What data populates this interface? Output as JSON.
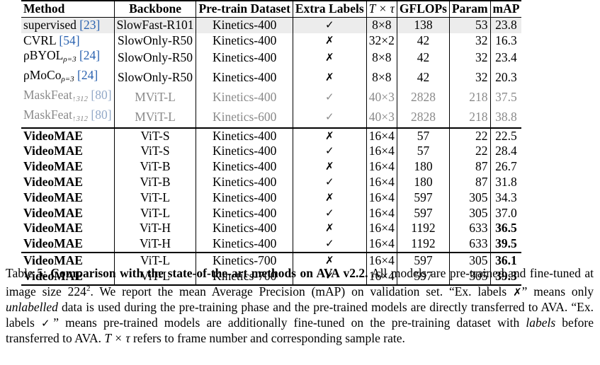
{
  "headers": {
    "method": "Method",
    "backbone": "Backbone",
    "dataset": "Pre-train Dataset",
    "extra": "Extra Labels",
    "ttau": "T × τ",
    "gflops": "GFLOPs",
    "param": "Param",
    "map": "mAP"
  },
  "rows": [
    {
      "method": "supervised ",
      "ref": "[23]",
      "backbone": "SlowFast-R101",
      "dataset": "Kinetics-400",
      "extra": "✓",
      "ttau": "8×8",
      "gflops": "138",
      "param": "53",
      "map": "23.8"
    },
    {
      "method": "CVRL ",
      "ref": "[54]",
      "backbone": "SlowOnly-R50",
      "dataset": "Kinetics-400",
      "extra": "✗",
      "ttau": "32×2",
      "gflops": "42",
      "param": "32",
      "map": "16.3"
    },
    {
      "method": "ρBYOL",
      "method_sub": "ρ=3",
      "ref": " [24]",
      "backbone": "SlowOnly-R50",
      "dataset": "Kinetics-400",
      "extra": "✗",
      "ttau": "8×8",
      "gflops": "42",
      "param": "32",
      "map": "23.4"
    },
    {
      "method": "ρMoCo",
      "method_sub": "ρ=3",
      "ref": " [24]",
      "backbone": "SlowOnly-R50",
      "dataset": "Kinetics-400",
      "extra": "✗",
      "ttau": "8×8",
      "gflops": "42",
      "param": "32",
      "map": "20.3"
    },
    {
      "method": "MaskFeat",
      "method_sub": "↑312",
      "ref": " [80]",
      "backbone": "MViT-L",
      "dataset": "Kinetics-400",
      "extra": "✓",
      "ttau": "40×3",
      "gflops": "2828",
      "param": "218",
      "map": "37.5"
    },
    {
      "method": "MaskFeat",
      "method_sub": "↑312",
      "ref": " [80]",
      "backbone": "MViT-L",
      "dataset": "Kinetics-600",
      "extra": "✓",
      "ttau": "40×3",
      "gflops": "2828",
      "param": "218",
      "map": "38.8"
    },
    {
      "method": "VideoMAE",
      "backbone": "ViT-S",
      "dataset": "Kinetics-400",
      "extra": "✗",
      "ttau": "16×4",
      "gflops": "57",
      "param": "22",
      "map": "22.5"
    },
    {
      "method": "VideoMAE",
      "backbone": "ViT-S",
      "dataset": "Kinetics-400",
      "extra": "✓",
      "ttau": "16×4",
      "gflops": "57",
      "param": "22",
      "map": "28.4"
    },
    {
      "method": "VideoMAE",
      "backbone": "ViT-B",
      "dataset": "Kinetics-400",
      "extra": "✗",
      "ttau": "16×4",
      "gflops": "180",
      "param": "87",
      "map": "26.7"
    },
    {
      "method": "VideoMAE",
      "backbone": "ViT-B",
      "dataset": "Kinetics-400",
      "extra": "✓",
      "ttau": "16×4",
      "gflops": "180",
      "param": "87",
      "map": "31.8"
    },
    {
      "method": "VideoMAE",
      "backbone": "ViT-L",
      "dataset": "Kinetics-400",
      "extra": "✗",
      "ttau": "16×4",
      "gflops": "597",
      "param": "305",
      "map": "34.3"
    },
    {
      "method": "VideoMAE",
      "backbone": "ViT-L",
      "dataset": "Kinetics-400",
      "extra": "✓",
      "ttau": "16×4",
      "gflops": "597",
      "param": "305",
      "map": "37.0"
    },
    {
      "method": "VideoMAE",
      "backbone": "ViT-H",
      "dataset": "Kinetics-400",
      "extra": "✗",
      "ttau": "16×4",
      "gflops": "1192",
      "param": "633",
      "map": "36.5"
    },
    {
      "method": "VideoMAE",
      "backbone": "ViT-H",
      "dataset": "Kinetics-400",
      "extra": "✓",
      "ttau": "16×4",
      "gflops": "1192",
      "param": "633",
      "map": "39.5"
    },
    {
      "method": "VideoMAE",
      "backbone": "ViT-L",
      "dataset": "Kinetics-700",
      "extra": "✗",
      "ttau": "16×4",
      "gflops": "597",
      "param": "305",
      "map": "36.1"
    },
    {
      "method": "VideoMAE",
      "backbone": "ViT-L",
      "dataset": "Kinetics-700",
      "extra": "✓",
      "ttau": "16×4",
      "gflops": "597",
      "param": "305",
      "map": "39.3"
    }
  ],
  "caption": {
    "label": "Table 5: ",
    "title": "Comparison with the state-of-the-art methods on AVA v2.2.",
    "s1": " All models are pre-trained and fine-tuned at image size 224",
    "s1_sup": "2",
    "s2": ". We report the mean Average Precision (mAP) on validation set. “Ex. labels ",
    "xmark": "✗",
    "s3": "” means only ",
    "unlabelled": "unlabelled",
    "s4": " data is used during the pre-training phase and the pre-trained models are directly transferred to AVA. “Ex. labels ",
    "cmark": "✓",
    "s5": "” means pre-trained models are additionally fine-tuned on the pre-training dataset with ",
    "labels": "labels",
    "s6": " before transferred to AVA. ",
    "ttau": "T × τ",
    "s7": " refers to frame number and corresponding sample rate."
  }
}
